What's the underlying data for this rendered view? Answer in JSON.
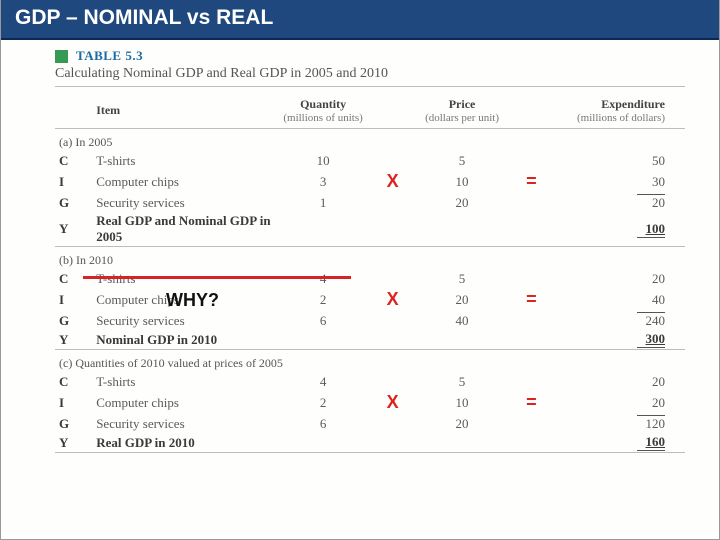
{
  "title": "GDP – NOMINAL vs REAL",
  "table_label": "TABLE 5.3",
  "subtitle": "Calculating Nominal GDP and Real GDP in 2005 and 2010",
  "headers": {
    "item": "Item",
    "qty": "Quantity",
    "qty_sub": "(millions of units)",
    "price": "Price",
    "price_sub": "(dollars per unit)",
    "exp": "Expenditure",
    "exp_sub": "(millions of dollars)"
  },
  "ops": {
    "x": "X",
    "eq": "="
  },
  "why": "WHY?",
  "annotations": {
    "redline_color": "#d62424",
    "op_color": "#d22"
  },
  "sections": [
    {
      "label": "(a) In 2005",
      "rows": [
        {
          "code": "C",
          "item": "T-shirts",
          "qty": "10",
          "price": "5",
          "exp": "50"
        },
        {
          "code": "I",
          "item": "Computer chips",
          "qty": "3",
          "price": "10",
          "exp": "30"
        },
        {
          "code": "G",
          "item": "Security services",
          "qty": "1",
          "price": "20",
          "exp": "20",
          "exp_underline": true
        }
      ],
      "total": {
        "code": "Y",
        "item": "Real GDP and Nominal GDP in 2005",
        "exp": "100"
      },
      "show_ops": true
    },
    {
      "label": "(b) In 2010",
      "rows": [
        {
          "code": "C",
          "item": "T-shirts",
          "qty": "4",
          "price": "5",
          "exp": "20"
        },
        {
          "code": "I",
          "item": "Computer chips",
          "qty": "2",
          "price": "20",
          "exp": "40"
        },
        {
          "code": "G",
          "item": "Security services",
          "qty": "6",
          "price": "40",
          "exp": "240",
          "exp_underline": true
        }
      ],
      "total": {
        "code": "Y",
        "item": "Nominal GDP in 2010",
        "exp": "300"
      },
      "show_ops": true
    },
    {
      "label": "(c) Quantities of 2010 valued at prices of 2005",
      "rows": [
        {
          "code": "C",
          "item": "T-shirts",
          "qty": "4",
          "price": "5",
          "exp": "20"
        },
        {
          "code": "I",
          "item": "Computer chips",
          "qty": "2",
          "price": "10",
          "exp": "20"
        },
        {
          "code": "G",
          "item": "Security services",
          "qty": "6",
          "price": "20",
          "exp": "120",
          "exp_underline": true
        }
      ],
      "total": {
        "code": "Y",
        "item": "Real GDP in 2010",
        "exp": "160"
      },
      "show_ops": true
    }
  ]
}
